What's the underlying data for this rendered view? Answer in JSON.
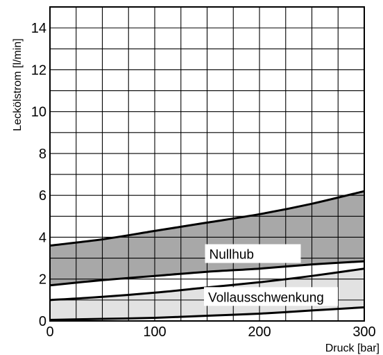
{
  "chart_data": {
    "type": "area",
    "xlabel": "Druck [bar]",
    "ylabel": "Leckölstrom [l/min]",
    "xlim": [
      0,
      300
    ],
    "ylim": [
      0,
      15
    ],
    "grid": true,
    "x_ticks": [
      "0",
      "100",
      "200",
      "300"
    ],
    "y_ticks": [
      "0",
      "2",
      "4",
      "6",
      "8",
      "10",
      "12",
      "14"
    ],
    "bands": [
      {
        "name": "Nullhub",
        "color": "#a8a8a8",
        "x": [
          0,
          50,
          100,
          150,
          200,
          250,
          300
        ],
        "upper": [
          3.6,
          3.9,
          4.3,
          4.7,
          5.1,
          5.6,
          6.2
        ],
        "lower": [
          1.7,
          1.95,
          2.15,
          2.35,
          2.5,
          2.7,
          2.85
        ]
      },
      {
        "name": "Vollausschwenkung",
        "color": "#e2e2e2",
        "x": [
          0,
          50,
          100,
          150,
          200,
          250,
          300
        ],
        "upper": [
          1.0,
          1.15,
          1.35,
          1.6,
          1.85,
          2.15,
          2.5
        ],
        "lower": [
          0.05,
          0.1,
          0.15,
          0.25,
          0.35,
          0.5,
          0.65
        ]
      }
    ]
  }
}
